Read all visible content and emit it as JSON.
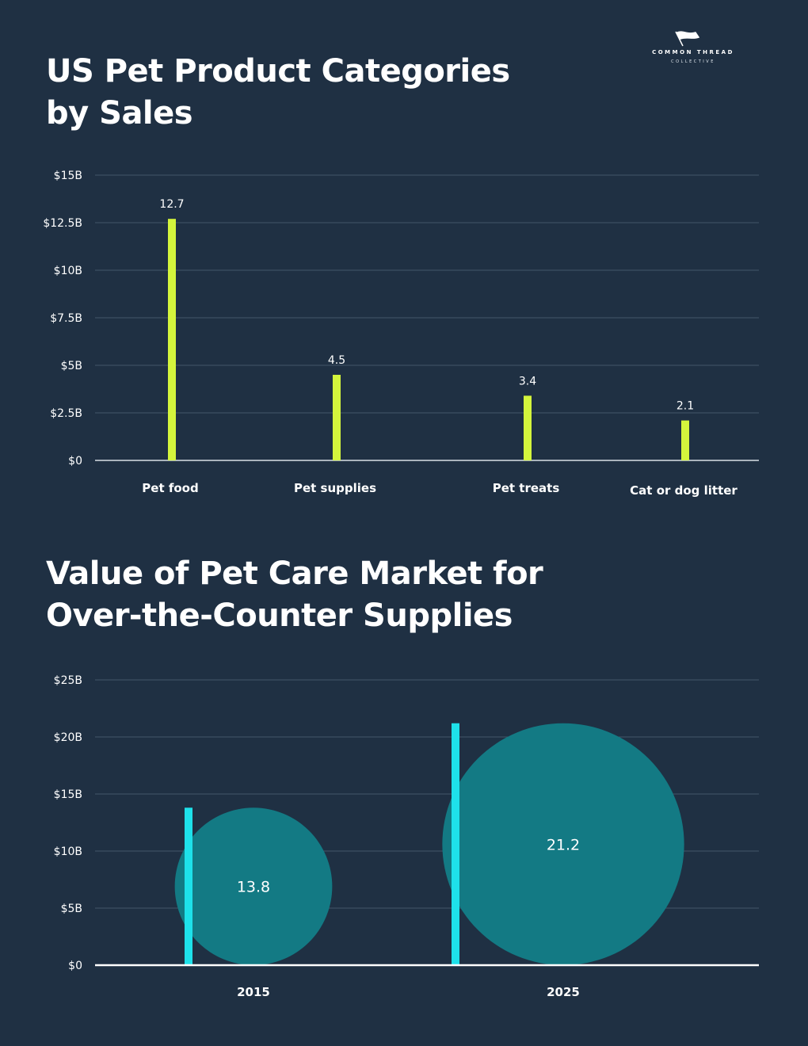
{
  "brand": {
    "name": "COMMON THREAD",
    "sub": "COLLECTIVE"
  },
  "colors": {
    "background": "#1f3043",
    "bar1": "#d4f53c",
    "bar2": "#1ee1ea",
    "bubble": "#137a84",
    "grid": "#43566a"
  },
  "chart_data": [
    {
      "type": "bar",
      "title": "US Pet Product Categories by Sales",
      "categories": [
        "Pet food",
        "Pet supplies",
        "Pet treats",
        "Cat or dog litter"
      ],
      "values": [
        12.7,
        4.5,
        3.4,
        2.1
      ],
      "value_labels": [
        "12.7",
        "4.5",
        "3.4",
        "2.1"
      ],
      "ylim": [
        0,
        15
      ],
      "yticks": [
        0,
        2.5,
        5,
        7.5,
        10,
        12.5,
        15
      ],
      "ytick_labels": [
        "$0",
        "$2.5B",
        "$5B",
        "$7.5B",
        "$10B",
        "$12.5B",
        "$15B"
      ],
      "xlabel": "",
      "ylabel": "",
      "grid": true
    },
    {
      "type": "bar",
      "title": "Value of Pet Care Market for Over-the-Counter Supplies",
      "categories": [
        "2015",
        "2025"
      ],
      "values": [
        13.8,
        21.2
      ],
      "value_labels": [
        "13.8",
        "21.2"
      ],
      "ylim": [
        0,
        25
      ],
      "yticks": [
        0,
        5,
        10,
        15,
        20,
        25
      ],
      "ytick_labels": [
        "$0",
        "$5B",
        "$10B",
        "$15B",
        "$20B",
        "$25B"
      ],
      "xlabel": "",
      "ylabel": "",
      "grid": true
    }
  ]
}
